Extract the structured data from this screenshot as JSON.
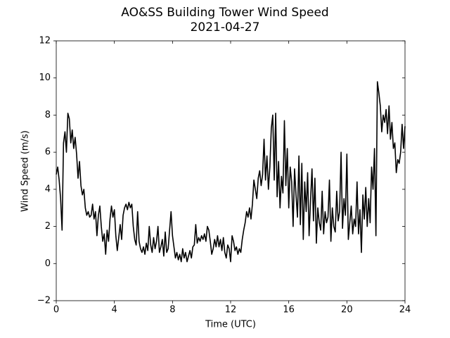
{
  "chart_data": {
    "type": "line",
    "title": "AO&SS Building Tower Wind Speed",
    "subtitle": "2021-04-27",
    "x_label": "Time (UTC)",
    "y_label": "Wind Speed (m/s)",
    "x": [
      0,
      0.1,
      0.2,
      0.3,
      0.4,
      0.5,
      0.6,
      0.7,
      0.8,
      0.9,
      1,
      1.1,
      1.2,
      1.3,
      1.4,
      1.5,
      1.6,
      1.7,
      1.8,
      1.9,
      2,
      2.1,
      2.2,
      2.3,
      2.4,
      2.5,
      2.6,
      2.7,
      2.8,
      2.9,
      3,
      3.1,
      3.2,
      3.3,
      3.4,
      3.5,
      3.6,
      3.7,
      3.8,
      3.9,
      4,
      4.1,
      4.2,
      4.3,
      4.4,
      4.5,
      4.6,
      4.7,
      4.8,
      4.9,
      5,
      5.1,
      5.2,
      5.3,
      5.4,
      5.5,
      5.6,
      5.7,
      5.8,
      5.9,
      6,
      6.1,
      6.2,
      6.3,
      6.4,
      6.5,
      6.6,
      6.7,
      6.8,
      6.9,
      7,
      7.1,
      7.2,
      7.3,
      7.4,
      7.5,
      7.6,
      7.7,
      7.8,
      7.9,
      8,
      8.1,
      8.2,
      8.3,
      8.4,
      8.5,
      8.6,
      8.7,
      8.8,
      8.9,
      9,
      9.1,
      9.2,
      9.3,
      9.4,
      9.5,
      9.6,
      9.7,
      9.8,
      9.9,
      10,
      10.1,
      10.2,
      10.3,
      10.4,
      10.5,
      10.6,
      10.7,
      10.8,
      10.9,
      11,
      11.1,
      11.2,
      11.3,
      11.4,
      11.5,
      11.6,
      11.7,
      11.8,
      11.9,
      12,
      12.1,
      12.2,
      12.3,
      12.4,
      12.5,
      12.6,
      12.7,
      12.8,
      12.9,
      13,
      13.1,
      13.2,
      13.3,
      13.4,
      13.5,
      13.6,
      13.7,
      13.8,
      13.9,
      14,
      14.1,
      14.2,
      14.3,
      14.4,
      14.5,
      14.6,
      14.7,
      14.8,
      14.9,
      15,
      15.1,
      15.2,
      15.3,
      15.4,
      15.5,
      15.6,
      15.7,
      15.8,
      15.9,
      16,
      16.1,
      16.2,
      16.3,
      16.4,
      16.5,
      16.6,
      16.7,
      16.8,
      16.9,
      17,
      17.1,
      17.2,
      17.3,
      17.4,
      17.5,
      17.6,
      17.7,
      17.8,
      17.9,
      18,
      18.1,
      18.2,
      18.3,
      18.4,
      18.5,
      18.6,
      18.7,
      18.8,
      18.9,
      19,
      19.1,
      19.2,
      19.3,
      19.4,
      19.5,
      19.6,
      19.7,
      19.8,
      19.9,
      20,
      20.1,
      20.2,
      20.3,
      20.4,
      20.5,
      20.6,
      20.7,
      20.8,
      20.9,
      21,
      21.1,
      21.2,
      21.3,
      21.4,
      21.5,
      21.6,
      21.7,
      21.8,
      21.9,
      22,
      22.1,
      22.2,
      22.3,
      22.4,
      22.5,
      22.6,
      22.7,
      22.8,
      22.9,
      23,
      23.1,
      23.2,
      23.3,
      23.4,
      23.5,
      23.6,
      23.7,
      23.8,
      23.9,
      24
    ],
    "series": [
      {
        "name": "Wind Speed",
        "color": "#000000",
        "values": [
          4.8,
          5.2,
          4.5,
          3.5,
          1.8,
          6.5,
          7.1,
          6.0,
          8.1,
          7.8,
          6.5,
          7.2,
          6.2,
          6.8,
          5.9,
          4.6,
          5.5,
          4.2,
          3.7,
          4.0,
          3.0,
          2.6,
          2.8,
          2.5,
          2.6,
          3.2,
          2.4,
          2.8,
          1.5,
          2.6,
          3.1,
          2.0,
          1.2,
          1.6,
          0.5,
          1.8,
          1.2,
          2.4,
          3.1,
          2.5,
          2.9,
          1.5,
          0.7,
          1.4,
          2.1,
          1.3,
          2.6,
          3.0,
          3.2,
          2.9,
          3.3,
          3.0,
          3.2,
          2.0,
          1.3,
          1.0,
          2.8,
          1.2,
          0.8,
          0.6,
          0.9,
          0.5,
          1.1,
          0.7,
          2.0,
          1.0,
          0.6,
          1.4,
          0.8,
          1.2,
          2.0,
          0.6,
          0.9,
          1.3,
          0.4,
          1.7,
          0.6,
          0.8,
          1.8,
          2.8,
          1.5,
          0.9,
          0.3,
          0.6,
          0.2,
          0.5,
          0.1,
          0.8,
          0.3,
          0.6,
          0.1,
          0.4,
          0.7,
          0.3,
          0.9,
          1.0,
          2.1,
          1.1,
          1.4,
          1.2,
          1.5,
          1.3,
          1.6,
          1.2,
          2.0,
          1.8,
          1.2,
          0.5,
          0.8,
          1.3,
          0.9,
          1.5,
          0.9,
          1.3,
          0.7,
          1.4,
          0.6,
          0.3,
          1.0,
          0.8,
          0.1,
          1.5,
          1.2,
          0.7,
          0.9,
          0.5,
          0.8,
          0.6,
          1.3,
          1.8,
          2.2,
          2.8,
          2.5,
          3.0,
          2.4,
          3.2,
          4.5,
          4.0,
          3.5,
          4.6,
          5.0,
          4.2,
          4.8,
          6.7,
          4.5,
          5.8,
          4.0,
          5.2,
          7.3,
          8.0,
          4.5,
          8.1,
          3.6,
          5.5,
          3.0,
          4.7,
          3.8,
          7.7,
          4.2,
          6.2,
          3.0,
          5.2,
          4.4,
          2.0,
          5.1,
          3.7,
          2.5,
          5.8,
          2.1,
          5.4,
          1.3,
          4.4,
          2.8,
          4.9,
          1.5,
          3.4,
          5.1,
          2.3,
          4.6,
          1.1,
          3.0,
          2.2,
          1.8,
          3.9,
          1.6,
          2.8,
          2.2,
          2.5,
          4.5,
          1.2,
          3.0,
          2.0,
          1.7,
          3.9,
          2.3,
          2.8,
          6.0,
          1.9,
          3.5,
          2.6,
          5.9,
          1.3,
          2.2,
          3.1,
          1.6,
          2.4,
          2.0,
          4.4,
          1.6,
          2.9,
          0.6,
          3.7,
          2.4,
          4.1,
          2.0,
          3.5,
          2.2,
          5.2,
          4.0,
          6.2,
          1.5,
          9.8,
          9.2,
          8.5,
          7.1,
          8.0,
          7.6,
          8.3,
          7.0,
          8.5,
          6.7,
          7.6,
          6.2,
          6.5,
          4.9,
          5.6,
          5.4,
          6.0,
          7.5,
          6.2,
          7.4
        ]
      }
    ],
    "xlim": [
      0,
      24
    ],
    "xticks": [
      0,
      4,
      8,
      12,
      16,
      20,
      24
    ],
    "ylim": [
      -2,
      12
    ],
    "yticks": [
      {
        "value": -2,
        "label": "−2"
      },
      0,
      2,
      4,
      6,
      8,
      10,
      12
    ]
  }
}
